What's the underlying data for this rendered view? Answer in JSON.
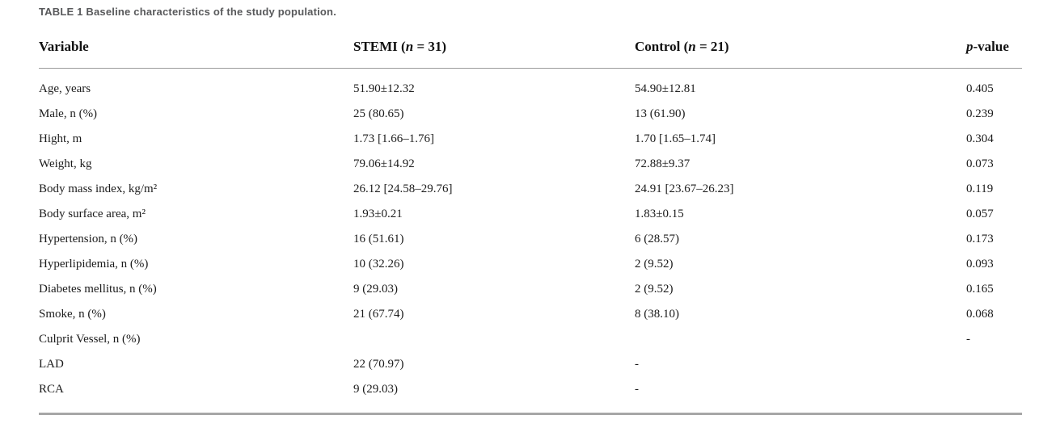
{
  "title": "TABLE 1 Baseline characteristics of the study population.",
  "table": {
    "header": {
      "variable": "Variable",
      "stemi_pre": "STEMI (",
      "stemi_n": "n",
      "stemi_post": " = 31)",
      "control_pre": "Control (",
      "control_n": "n",
      "control_post": " = 21)",
      "pvalue_p": "p",
      "pvalue_rest": "-value"
    },
    "rows": [
      {
        "variable": "Age, years",
        "stemi": "51.90±12.32",
        "control": "54.90±12.81",
        "p": "0.405"
      },
      {
        "variable": "Male, n (%)",
        "stemi": "25 (80.65)",
        "control": "13 (61.90)",
        "p": "0.239"
      },
      {
        "variable": "Hight, m",
        "stemi": "1.73 [1.66–1.76]",
        "control": "1.70 [1.65–1.74]",
        "p": "0.304"
      },
      {
        "variable": "Weight, kg",
        "stemi": "79.06±14.92",
        "control": "72.88±9.37",
        "p": "0.073"
      },
      {
        "variable": "Body mass index, kg/m²",
        "stemi": "26.12 [24.58–29.76]",
        "control": "24.91 [23.67–26.23]",
        "p": "0.119"
      },
      {
        "variable": "Body surface area, m²",
        "stemi": "1.93±0.21",
        "control": "1.83±0.15",
        "p": "0.057"
      },
      {
        "variable": "Hypertension, n (%)",
        "stemi": "16 (51.61)",
        "control": "6 (28.57)",
        "p": "0.173"
      },
      {
        "variable": "Hyperlipidemia, n (%)",
        "stemi": "10 (32.26)",
        "control": "2 (9.52)",
        "p": "0.093"
      },
      {
        "variable": "Diabetes mellitus, n (%)",
        "stemi": "9 (29.03)",
        "control": "2 (9.52)",
        "p": "0.165"
      },
      {
        "variable": "Smoke, n (%)",
        "stemi": "21 (67.74)",
        "control": "8 (38.10)",
        "p": "0.068"
      },
      {
        "variable": "Culprit Vessel, n (%)",
        "stemi": "",
        "control": "",
        "p": "-"
      },
      {
        "variable": "LAD",
        "stemi": "22 (70.97)",
        "control": "-",
        "p": ""
      },
      {
        "variable": "RCA",
        "stemi": "9 (29.03)",
        "control": "-",
        "p": ""
      }
    ]
  },
  "colors": {
    "title_text": "#58595b",
    "body_text": "#1c1c1c",
    "rule_light": "#9a9a9a",
    "rule_heavy": "#a6a6a6"
  }
}
